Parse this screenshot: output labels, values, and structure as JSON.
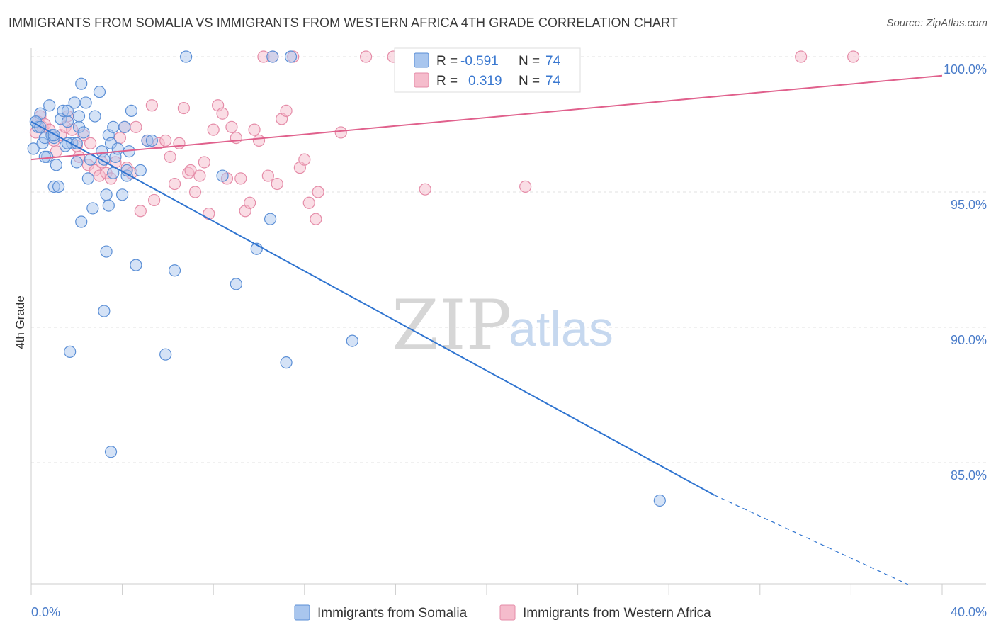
{
  "title": "IMMIGRANTS FROM SOMALIA VS IMMIGRANTS FROM WESTERN AFRICA 4TH GRADE CORRELATION CHART",
  "source": "Source: ZipAtlas.com",
  "watermark": {
    "zip": "ZIP",
    "atlas": "atlas"
  },
  "colors": {
    "somalia_fill": "#a9c6ee",
    "somalia_stroke": "#5b8fd6",
    "somalia_line": "#2f74d0",
    "wafrica_fill": "#f5bccc",
    "wafrica_stroke": "#e58ca8",
    "wafrica_line": "#e0608c",
    "grid": "#e2e2e2",
    "axis_text": "#4a7cc9"
  },
  "legend": {
    "rows": [
      {
        "r_label": "R =",
        "r_value": "-0.591",
        "n_label": "N =",
        "n_value": "74"
      },
      {
        "r_label": "R =",
        "r_value": "0.319",
        "n_label": "N =",
        "n_value": "74"
      }
    ]
  },
  "chart_data": {
    "type": "scatter",
    "ylabel": "4th Grade",
    "xlim": [
      0,
      40
    ],
    "ylim": [
      80.5,
      101
    ],
    "x_tick_labels": [
      "0.0%",
      "40.0%"
    ],
    "y_ticks": [
      85,
      90,
      95,
      100
    ],
    "y_tick_labels": [
      "85.0%",
      "90.0%",
      "95.0%",
      "100.0%"
    ],
    "grid": true,
    "legend_position": "top-center",
    "series": [
      {
        "name": "Immigrants from Somalia",
        "points": [
          [
            0.1,
            96.6
          ],
          [
            0.2,
            97.6
          ],
          [
            0.3,
            97.4
          ],
          [
            0.4,
            97.9
          ],
          [
            0.5,
            96.8
          ],
          [
            0.6,
            97.0
          ],
          [
            0.7,
            96.3
          ],
          [
            0.8,
            98.2
          ],
          [
            0.9,
            97.1
          ],
          [
            1.0,
            97.0
          ],
          [
            1.1,
            96.0
          ],
          [
            1.0,
            95.2
          ],
          [
            1.2,
            95.2
          ],
          [
            1.3,
            97.7
          ],
          [
            1.4,
            98.0
          ],
          [
            1.5,
            96.7
          ],
          [
            1.6,
            97.6
          ],
          [
            1.6,
            98.0
          ],
          [
            1.8,
            96.8
          ],
          [
            1.9,
            98.3
          ],
          [
            2.0,
            96.1
          ],
          [
            2.1,
            97.4
          ],
          [
            2.1,
            97.8
          ],
          [
            2.2,
            99.0
          ],
          [
            2.3,
            97.2
          ],
          [
            2.4,
            98.3
          ],
          [
            2.5,
            95.5
          ],
          [
            2.6,
            96.2
          ],
          [
            2.7,
            94.4
          ],
          [
            2.8,
            97.8
          ],
          [
            3.0,
            98.7
          ],
          [
            3.1,
            96.5
          ],
          [
            3.2,
            96.2
          ],
          [
            3.3,
            94.9
          ],
          [
            3.4,
            97.1
          ],
          [
            3.5,
            96.8
          ],
          [
            3.6,
            97.4
          ],
          [
            3.6,
            95.7
          ],
          [
            3.7,
            96.3
          ],
          [
            3.8,
            96.6
          ],
          [
            4.0,
            94.9
          ],
          [
            4.1,
            97.4
          ],
          [
            4.2,
            95.6
          ],
          [
            4.3,
            96.5
          ],
          [
            4.2,
            95.8
          ],
          [
            4.4,
            98.0
          ],
          [
            4.6,
            92.3
          ],
          [
            4.8,
            95.8
          ],
          [
            5.1,
            96.9
          ],
          [
            5.3,
            96.9
          ],
          [
            2.2,
            93.9
          ],
          [
            3.3,
            92.8
          ],
          [
            3.4,
            94.5
          ],
          [
            3.2,
            90.6
          ],
          [
            1.7,
            89.1
          ],
          [
            3.5,
            85.4
          ],
          [
            6.3,
            92.1
          ],
          [
            5.9,
            89.0
          ],
          [
            6.8,
            100.0
          ],
          [
            8.4,
            95.6
          ],
          [
            9.0,
            91.6
          ],
          [
            9.9,
            92.9
          ],
          [
            10.5,
            94.0
          ],
          [
            10.6,
            100.0
          ],
          [
            11.2,
            88.7
          ],
          [
            11.4,
            100.0
          ],
          [
            14.1,
            89.5
          ],
          [
            27.6,
            83.6
          ],
          [
            0.2,
            97.6
          ],
          [
            0.4,
            97.4
          ],
          [
            0.6,
            96.3
          ],
          [
            1.0,
            97.1
          ],
          [
            1.6,
            96.8
          ],
          [
            2.0,
            96.8
          ]
        ]
      },
      {
        "name": "Immigrants from Western Africa",
        "points": [
          [
            0.2,
            97.2
          ],
          [
            0.3,
            97.6
          ],
          [
            0.4,
            97.8
          ],
          [
            0.5,
            97.4
          ],
          [
            0.6,
            97.5
          ],
          [
            0.8,
            97.3
          ],
          [
            1.0,
            96.9
          ],
          [
            1.1,
            96.5
          ],
          [
            1.3,
            97.1
          ],
          [
            1.5,
            97.4
          ],
          [
            1.6,
            97.8
          ],
          [
            1.8,
            97.3
          ],
          [
            2.0,
            96.7
          ],
          [
            2.1,
            96.3
          ],
          [
            2.3,
            97.1
          ],
          [
            2.5,
            96.0
          ],
          [
            2.6,
            96.8
          ],
          [
            2.8,
            95.8
          ],
          [
            3.0,
            95.6
          ],
          [
            3.1,
            96.1
          ],
          [
            3.3,
            95.7
          ],
          [
            3.5,
            95.5
          ],
          [
            3.7,
            96.1
          ],
          [
            3.9,
            97.0
          ],
          [
            4.1,
            97.4
          ],
          [
            4.2,
            95.9
          ],
          [
            4.4,
            95.7
          ],
          [
            4.6,
            97.4
          ],
          [
            4.8,
            94.3
          ],
          [
            5.1,
            96.9
          ],
          [
            5.3,
            98.2
          ],
          [
            5.4,
            94.7
          ],
          [
            5.6,
            96.8
          ],
          [
            5.9,
            96.9
          ],
          [
            6.1,
            96.3
          ],
          [
            6.3,
            95.3
          ],
          [
            6.5,
            96.8
          ],
          [
            6.7,
            98.1
          ],
          [
            6.9,
            95.7
          ],
          [
            7.0,
            95.8
          ],
          [
            7.2,
            95.0
          ],
          [
            7.4,
            95.6
          ],
          [
            7.6,
            96.1
          ],
          [
            7.8,
            94.2
          ],
          [
            8.0,
            97.3
          ],
          [
            8.2,
            98.2
          ],
          [
            8.4,
            97.9
          ],
          [
            8.6,
            95.5
          ],
          [
            8.8,
            97.4
          ],
          [
            9.0,
            97.0
          ],
          [
            9.2,
            95.5
          ],
          [
            9.4,
            94.3
          ],
          [
            9.6,
            94.6
          ],
          [
            9.8,
            97.3
          ],
          [
            10.0,
            96.9
          ],
          [
            10.2,
            100.0
          ],
          [
            10.4,
            95.6
          ],
          [
            10.6,
            100.0
          ],
          [
            10.8,
            95.3
          ],
          [
            11.0,
            97.7
          ],
          [
            11.2,
            98.0
          ],
          [
            11.5,
            100.0
          ],
          [
            11.8,
            95.9
          ],
          [
            12.0,
            96.2
          ],
          [
            12.2,
            94.6
          ],
          [
            12.5,
            94.0
          ],
          [
            12.6,
            95.0
          ],
          [
            13.6,
            97.2
          ],
          [
            14.7,
            100.0
          ],
          [
            15.9,
            100.0
          ],
          [
            17.3,
            95.1
          ],
          [
            21.7,
            95.2
          ],
          [
            33.8,
            100.0
          ],
          [
            36.1,
            100.0
          ]
        ]
      }
    ],
    "trend_lines": [
      {
        "series": "Immigrants from Somalia",
        "x0": 0,
        "y0": 97.6,
        "x1": 30,
        "y1": 83.8,
        "dash_to_x": 38.5,
        "dash_to_y": 80.5
      },
      {
        "series": "Immigrants from Western Africa",
        "x0": 0,
        "y0": 96.2,
        "x1": 40,
        "y1": 99.3
      }
    ]
  }
}
